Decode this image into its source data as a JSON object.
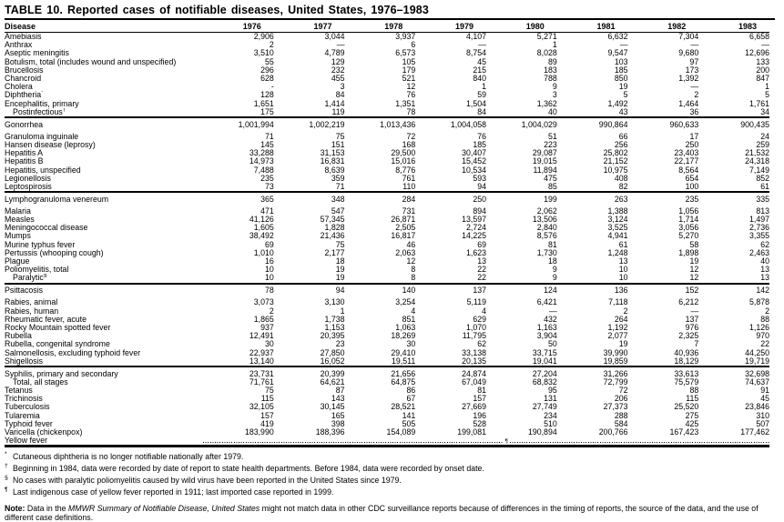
{
  "title": "TABLE 10. Reported cases of notifiable diseases, United States, 1976–1983",
  "header": {
    "disease": "Disease",
    "years": [
      "1976",
      "1977",
      "1978",
      "1979",
      "1980",
      "1981",
      "1982",
      "1983"
    ]
  },
  "sections": [
    {
      "thick_top": false,
      "rows": [
        {
          "label": "Amebiasis",
          "values": [
            "2,906",
            "3,044",
            "3,937",
            "4,107",
            "5,271",
            "6,632",
            "7,304",
            "6,658"
          ]
        },
        {
          "label": "Anthrax",
          "values": [
            "2",
            "—",
            "6",
            "—",
            "1",
            "—",
            "—",
            "—"
          ]
        },
        {
          "label": "Aseptic meningitis",
          "values": [
            "3,510",
            "4,789",
            "6,573",
            "8,754",
            "8,028",
            "9,547",
            "9,680",
            "12,696"
          ]
        },
        {
          "label": "Botulism, total (includes wound and unspecified)",
          "values": [
            "55",
            "129",
            "105",
            "45",
            "89",
            "103",
            "97",
            "133"
          ]
        },
        {
          "label": "Brucellosis",
          "values": [
            "296",
            "232",
            "179",
            "215",
            "183",
            "185",
            "173",
            "200"
          ]
        },
        {
          "label": "Chancroid",
          "values": [
            "628",
            "455",
            "521",
            "840",
            "788",
            "850",
            "1,392",
            "847"
          ]
        },
        {
          "label": "Cholera",
          "values": [
            "-",
            "3",
            "12",
            "1",
            "9",
            "19",
            "—",
            "1"
          ]
        },
        {
          "label": "Diphtheria",
          "marker": "*",
          "values": [
            "128",
            "84",
            "76",
            "59",
            "3",
            "5",
            "2",
            "5"
          ]
        },
        {
          "label": "Encephalitis, primary",
          "values": [
            "1,651",
            "1,414",
            "1,351",
            "1,504",
            "1,362",
            "1,492",
            "1,464",
            "1,761"
          ]
        },
        {
          "label": "Postinfectious",
          "marker": "†",
          "indent": true,
          "values": [
            "175",
            "119",
            "78",
            "84",
            "40",
            "43",
            "36",
            "34"
          ]
        }
      ]
    },
    {
      "thick_top": true,
      "rows": [
        {
          "label": "Gonorrhea",
          "gap_below": true,
          "values": [
            "1,001,994",
            "1,002,219",
            "1,013,436",
            "1,004,058",
            "1,004,029",
            "990,864",
            "960,633",
            "900,435"
          ]
        },
        {
          "label": "Granuloma inguinale",
          "values": [
            "71",
            "75",
            "72",
            "76",
            "51",
            "66",
            "17",
            "24"
          ]
        },
        {
          "label": "Hansen disease (leprosy)",
          "values": [
            "145",
            "151",
            "168",
            "185",
            "223",
            "256",
            "250",
            "259"
          ]
        },
        {
          "label": "Hepatitis A",
          "values": [
            "33,288",
            "31,153",
            "29,500",
            "30,407",
            "29,087",
            "25,802",
            "23,403",
            "21,532"
          ]
        },
        {
          "label": "Hepatitis B",
          "values": [
            "14,973",
            "16,831",
            "15,016",
            "15,452",
            "19,015",
            "21,152",
            "22,177",
            "24,318"
          ]
        },
        {
          "label": "Hepatitis, unspecified",
          "values": [
            "7,488",
            "8,639",
            "8,776",
            "10,534",
            "11,894",
            "10,975",
            "8,564",
            "7,149"
          ]
        },
        {
          "label": "Legionellosis",
          "values": [
            "235",
            "359",
            "761",
            "593",
            "475",
            "408",
            "654",
            "852"
          ]
        },
        {
          "label": "Leptospirosis",
          "values": [
            "73",
            "71",
            "110",
            "94",
            "85",
            "82",
            "100",
            "61"
          ]
        }
      ]
    },
    {
      "thick_top": true,
      "rows": [
        {
          "label": "Lymphogranuloma venereum",
          "gap_below": true,
          "values": [
            "365",
            "348",
            "284",
            "250",
            "199",
            "263",
            "235",
            "335"
          ]
        },
        {
          "label": "Malaria",
          "values": [
            "471",
            "547",
            "731",
            "894",
            "2,062",
            "1,388",
            "1,056",
            "813"
          ]
        },
        {
          "label": "Measles",
          "values": [
            "41,126",
            "57,345",
            "26,871",
            "13,597",
            "13,506",
            "3,124",
            "1,714",
            "1,497"
          ]
        },
        {
          "label": "Meningococcal disease",
          "values": [
            "1,605",
            "1,828",
            "2,505",
            "2,724",
            "2,840",
            "3,525",
            "3,056",
            "2,736"
          ]
        },
        {
          "label": "Mumps",
          "values": [
            "38,492",
            "21,436",
            "16,817",
            "14,225",
            "8,576",
            "4,941",
            "5,270",
            "3,355"
          ]
        },
        {
          "label": "Murine typhus fever",
          "values": [
            "69",
            "75",
            "46",
            "69",
            "81",
            "61",
            "58",
            "62"
          ]
        },
        {
          "label": "Pertussis (whooping cough)",
          "values": [
            "1,010",
            "2,177",
            "2,063",
            "1,623",
            "1,730",
            "1,248",
            "1,898",
            "2,463"
          ]
        },
        {
          "label": "Plague",
          "values": [
            "16",
            "18",
            "12",
            "13",
            "18",
            "13",
            "19",
            "40"
          ]
        },
        {
          "label": "Poliomyelitis, total",
          "values": [
            "10",
            "19",
            "8",
            "22",
            "9",
            "10",
            "12",
            "13"
          ]
        },
        {
          "label": "Paralytic",
          "marker": "§",
          "indent": true,
          "values": [
            "10",
            "19",
            "8",
            "22",
            "9",
            "10",
            "12",
            "13"
          ]
        }
      ]
    },
    {
      "thick_top": true,
      "rows": [
        {
          "label": "Psittacosis",
          "gap_below": true,
          "values": [
            "78",
            "94",
            "140",
            "137",
            "124",
            "136",
            "152",
            "142"
          ]
        },
        {
          "label": "Rabies, animal",
          "values": [
            "3,073",
            "3,130",
            "3,254",
            "5,119",
            "6,421",
            "7,118",
            "6,212",
            "5,878"
          ]
        },
        {
          "label": "Rabies, human",
          "values": [
            "2",
            "1",
            "4",
            "4",
            "—",
            "2",
            "—",
            "2"
          ]
        },
        {
          "label": "Rheumatic fever, acute",
          "values": [
            "1,865",
            "1,738",
            "851",
            "629",
            "432",
            "264",
            "137",
            "88"
          ]
        },
        {
          "label": "Rocky Mountain spotted fever",
          "values": [
            "937",
            "1,153",
            "1,063",
            "1,070",
            "1,163",
            "1,192",
            "976",
            "1,126"
          ]
        },
        {
          "label": "Rubella",
          "values": [
            "12,491",
            "20,395",
            "18,269",
            "11,795",
            "3,904",
            "2,077",
            "2,325",
            "970"
          ]
        },
        {
          "label": "Rubella, congenital syndrome",
          "values": [
            "30",
            "23",
            "30",
            "62",
            "50",
            "19",
            "7",
            "22"
          ]
        },
        {
          "label": "Salmonellosis, excluding typhoid fever",
          "values": [
            "22,937",
            "27,850",
            "29,410",
            "33,138",
            "33,715",
            "39,990",
            "40,936",
            "44,250"
          ]
        },
        {
          "label": "Shigellosis",
          "values": [
            "13,140",
            "16,052",
            "19,511",
            "20,135",
            "19,041",
            "19,859",
            "18,129",
            "19,719"
          ]
        }
      ]
    },
    {
      "thick_top": true,
      "rows": [
        {
          "label": "Syphilis, primary and secondary",
          "values": [
            "23,731",
            "20,399",
            "21,656",
            "24,874",
            "27,204",
            "31,266",
            "33,613",
            "32,698"
          ]
        },
        {
          "label": "Total, all stages",
          "indent": true,
          "values": [
            "71,761",
            "64,621",
            "64,875",
            "67,049",
            "68,832",
            "72,799",
            "75,579",
            "74,637"
          ]
        },
        {
          "label": "Tetanus",
          "values": [
            "75",
            "87",
            "86",
            "81",
            "95",
            "72",
            "88",
            "91"
          ]
        },
        {
          "label": "Trichinosis",
          "values": [
            "115",
            "143",
            "67",
            "157",
            "131",
            "206",
            "115",
            "45"
          ]
        },
        {
          "label": "Tuberculosis",
          "values": [
            "32,105",
            "30,145",
            "28,521",
            "27,669",
            "27,749",
            "27,373",
            "25,520",
            "23,846"
          ]
        },
        {
          "label": "Tularemia",
          "values": [
            "157",
            "165",
            "141",
            "196",
            "234",
            "288",
            "275",
            "310"
          ]
        },
        {
          "label": "Typhoid fever",
          "values": [
            "419",
            "398",
            "505",
            "528",
            "510",
            "584",
            "425",
            "507"
          ]
        },
        {
          "label": "Varicella (chickenpox)",
          "values": [
            "183,990",
            "188,396",
            "154,089",
            "199,081",
            "190,894",
            "200,766",
            "167,423",
            "177,462"
          ]
        },
        {
          "label": "Yellow fever",
          "dotted": true,
          "dotted_marker": "¶"
        }
      ]
    }
  ],
  "footnotes": [
    {
      "marker": "*",
      "text": "Cutaneous diphtheria is no longer notifiable nationally after 1979."
    },
    {
      "marker": "†",
      "text": "Beginning in 1984, data were recorded by date of report to state health departments. Before 1984, data were recorded by onset date."
    },
    {
      "marker": "§",
      "text": "No cases with paralytic poliomyelitis caused by wild virus have been reported in the United States since 1979."
    },
    {
      "marker": "¶",
      "text": "Last indigenous case of yellow fever reported in 1911; last imported case reported in 1999."
    }
  ],
  "note": {
    "label": "Note:",
    "text_before_italic": " Data in the ",
    "italic": "MMWR Summary of Notifiable Disease, United States",
    "text_after_italic": " might not match data in other CDC surveillance reports because of differences in the timing of reports, the source of the data, and the use of different case definitions."
  }
}
